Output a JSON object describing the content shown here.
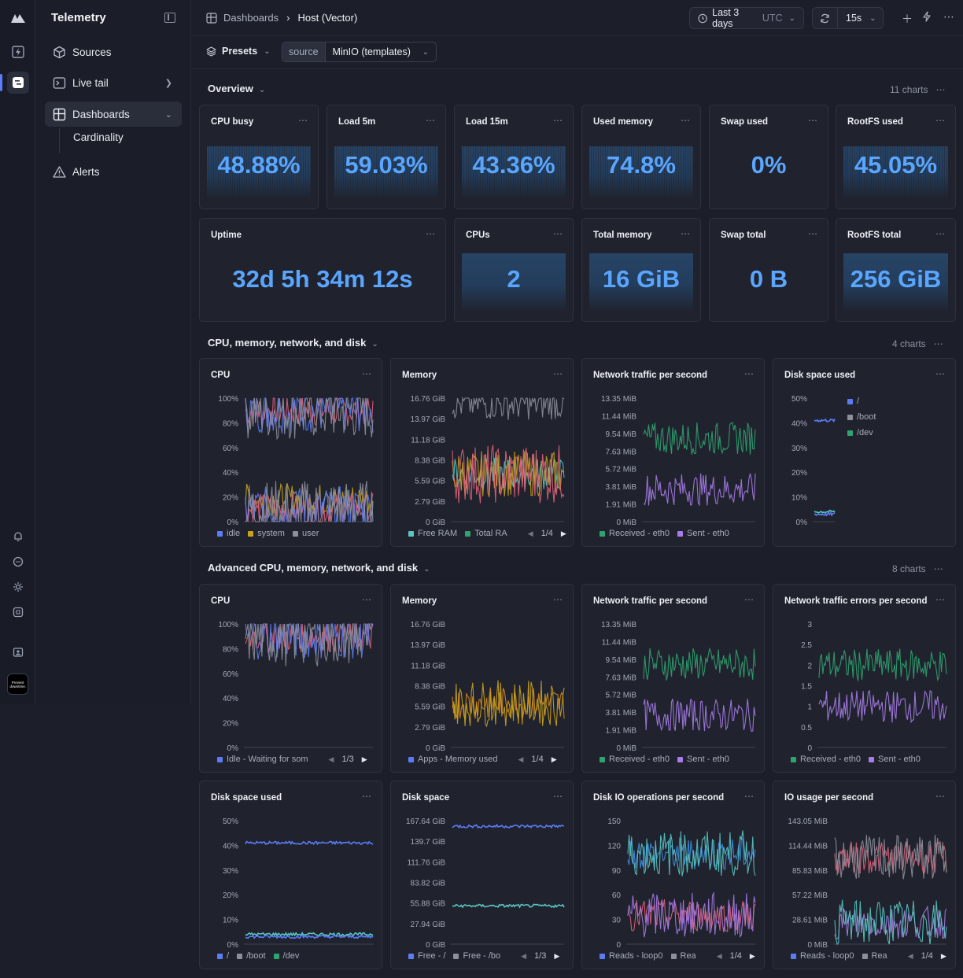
{
  "app": {
    "title": "Telemetry"
  },
  "sidebar": {
    "items": [
      {
        "label": "Sources",
        "icon": "cube-icon"
      },
      {
        "label": "Live tail",
        "icon": "terminal-icon"
      },
      {
        "label": "Dashboards",
        "icon": "dashboard-icon"
      },
      {
        "label": "Alerts",
        "icon": "alert-triangle-icon"
      }
    ],
    "sub_items": [
      {
        "label": "Cardinality"
      }
    ],
    "footer_badge": "Prevent downtime."
  },
  "breadcrumb": {
    "root": "Dashboards",
    "current": "Host (Vector)"
  },
  "toolbar": {
    "time_range": "Last 3 days",
    "time_zone": "UTC",
    "refresh": "15s"
  },
  "filters": {
    "presets_label": "Presets",
    "source_key": "source",
    "source_value": "MinIO (templates)"
  },
  "sections": [
    {
      "title": "Overview",
      "count": "11 charts"
    },
    {
      "title": "CPU, memory, network, and disk",
      "count": "4 charts"
    },
    {
      "title": "Advanced CPU, memory, network, and disk",
      "count": "8 charts"
    }
  ],
  "stats": [
    {
      "title": "CPU busy",
      "value": "48.88%"
    },
    {
      "title": "Load 5m",
      "value": "59.03%"
    },
    {
      "title": "Load 15m",
      "value": "43.36%"
    },
    {
      "title": "Used memory",
      "value": "74.8%"
    },
    {
      "title": "Swap used",
      "value": "0%"
    },
    {
      "title": "RootFS used",
      "value": "45.05%"
    },
    {
      "title": "Uptime",
      "value": "32d 5h 34m 12s"
    },
    {
      "title": "CPUs",
      "value": "2"
    },
    {
      "title": "Total memory",
      "value": "16 GiB"
    },
    {
      "title": "Swap total",
      "value": "0 B"
    },
    {
      "title": "RootFS total",
      "value": "256 GiB"
    }
  ],
  "colors": {
    "blue": "#5b7cf5",
    "pink": "#e0607a",
    "yellow": "#c9a21d",
    "teal": "#58c6c2",
    "green": "#2fa36f",
    "purple": "#a77ce8",
    "orange": "#d98a1e",
    "gray": "#8d8f9a",
    "sky": "#3d8fe0"
  },
  "chart_data": [
    {
      "type": "area",
      "title": "CPU",
      "yticks": [
        "100%",
        "80%",
        "60%",
        "40%",
        "20%",
        "0%"
      ],
      "ylim": [
        0,
        100
      ],
      "legend": [
        "idle",
        "system",
        "user"
      ],
      "series": [
        {
          "name": "idle",
          "level": 90
        },
        {
          "name": "system",
          "level": 18
        },
        {
          "name": "user",
          "level": 10
        }
      ]
    },
    {
      "type": "area",
      "title": "Memory",
      "yticks": [
        "16.76 GiB",
        "13.97 GiB",
        "11.18 GiB",
        "8.38 GiB",
        "5.59 GiB",
        "2.79 GiB",
        "0 GiB"
      ],
      "ylim": [
        0,
        16.76
      ],
      "legend": [
        "Free RAM",
        "Total RA"
      ],
      "page": "1/4",
      "series": [
        {
          "name": "Free RAM",
          "level": 6.5
        },
        {
          "name": "Total RA",
          "level": 16.0
        }
      ]
    },
    {
      "type": "area",
      "title": "Network traffic per second",
      "yticks": [
        "13.35 MiB",
        "11.44 MiB",
        "9.54 MiB",
        "7.63 MiB",
        "5.72 MiB",
        "3.81 MiB",
        "1.91 MiB",
        "0 MiB"
      ],
      "ylim": [
        0,
        13.35
      ],
      "legend": [
        "Received - eth0",
        "Sent - eth0"
      ],
      "series": [
        {
          "name": "Received - eth0",
          "level": 9.0
        },
        {
          "name": "Sent - eth0",
          "level": 3.5
        }
      ]
    },
    {
      "type": "line",
      "title": "Disk space used",
      "yticks": [
        "50%",
        "40%",
        "30%",
        "20%",
        "10%",
        "0%"
      ],
      "ylim": [
        0,
        50
      ],
      "legend": [
        "/",
        "/boot",
        "/dev"
      ],
      "series": [
        {
          "name": "/",
          "level": 41
        },
        {
          "name": "/boot",
          "level": 4
        },
        {
          "name": "/dev",
          "level": 3
        }
      ]
    },
    {
      "type": "area",
      "title": "CPU",
      "yticks": [
        "100%",
        "80%",
        "60%",
        "40%",
        "20%",
        "0%"
      ],
      "ylim": [
        0,
        100
      ],
      "legend": [
        "Idle - Waiting for som"
      ],
      "page": "1/3",
      "series": [
        {
          "name": "Idle - Waiting for som",
          "level": 90
        }
      ]
    },
    {
      "type": "area",
      "title": "Memory",
      "yticks": [
        "16.76 GiB",
        "13.97 GiB",
        "11.18 GiB",
        "8.38 GiB",
        "5.59 GiB",
        "2.79 GiB",
        "0 GiB"
      ],
      "ylim": [
        0,
        16.76
      ],
      "legend": [
        "Apps - Memory used"
      ],
      "page": "1/4",
      "series": [
        {
          "name": "Apps - Memory used",
          "level": 6.0
        }
      ]
    },
    {
      "type": "area",
      "title": "Network traffic per second",
      "yticks": [
        "13.35 MiB",
        "11.44 MiB",
        "9.54 MiB",
        "7.63 MiB",
        "5.72 MiB",
        "3.81 MiB",
        "1.91 MiB",
        "0 MiB"
      ],
      "ylim": [
        0,
        13.35
      ],
      "legend": [
        "Received - eth0",
        "Sent - eth0"
      ],
      "series": [
        {
          "name": "Received - eth0",
          "level": 9.0
        },
        {
          "name": "Sent - eth0",
          "level": 3.5
        }
      ]
    },
    {
      "type": "area",
      "title": "Network traffic errors per second",
      "yticks": [
        "3",
        "2.5",
        "2",
        "1.5",
        "1",
        "0.5",
        "0"
      ],
      "ylim": [
        0,
        3
      ],
      "legend": [
        "Received - eth0",
        "Sent - eth0"
      ],
      "series": [
        {
          "name": "Received - eth0",
          "level": 2.0
        },
        {
          "name": "Sent - eth0",
          "level": 1.0
        }
      ]
    },
    {
      "type": "line",
      "title": "Disk space used",
      "yticks": [
        "50%",
        "40%",
        "30%",
        "20%",
        "10%",
        "0%"
      ],
      "ylim": [
        0,
        50
      ],
      "legend": [
        "/",
        "/boot",
        "/dev"
      ],
      "series": [
        {
          "name": "/",
          "level": 41
        },
        {
          "name": "/boot",
          "level": 4
        },
        {
          "name": "/dev",
          "level": 3
        }
      ]
    },
    {
      "type": "line",
      "title": "Disk space",
      "yticks": [
        "167.64 GiB",
        "139.7 GiB",
        "111.76 GiB",
        "83.82 GiB",
        "55.88 GiB",
        "27.94 GiB",
        "0 GiB"
      ],
      "ylim": [
        0,
        167.64
      ],
      "legend": [
        "Free - /",
        "Free - /bo"
      ],
      "page": "1/3",
      "series": [
        {
          "name": "Free - /",
          "level": 160
        },
        {
          "name": "Free - /bo",
          "level": 52
        }
      ]
    },
    {
      "type": "area",
      "title": "Disk IO operations per second",
      "yticks": [
        "150",
        "120",
        "90",
        "60",
        "30",
        "0"
      ],
      "ylim": [
        0,
        150
      ],
      "legend": [
        "Reads - loop0",
        "Rea"
      ],
      "page": "1/4",
      "series": [
        {
          "name": "Reads - loop0",
          "level": 110
        },
        {
          "name": "Rea",
          "level": 35
        }
      ]
    },
    {
      "type": "area",
      "title": "IO usage per second",
      "yticks": [
        "143.05 MiB",
        "114.44 MiB",
        "85.83 MiB",
        "57.22 MiB",
        "28.61 MiB",
        "0 MiB"
      ],
      "ylim": [
        0,
        143.05
      ],
      "legend": [
        "Reads - loop0",
        "Rea"
      ],
      "page": "1/4",
      "series": [
        {
          "name": "Reads - loop0",
          "level": 100
        },
        {
          "name": "Rea",
          "level": 25
        }
      ]
    }
  ]
}
